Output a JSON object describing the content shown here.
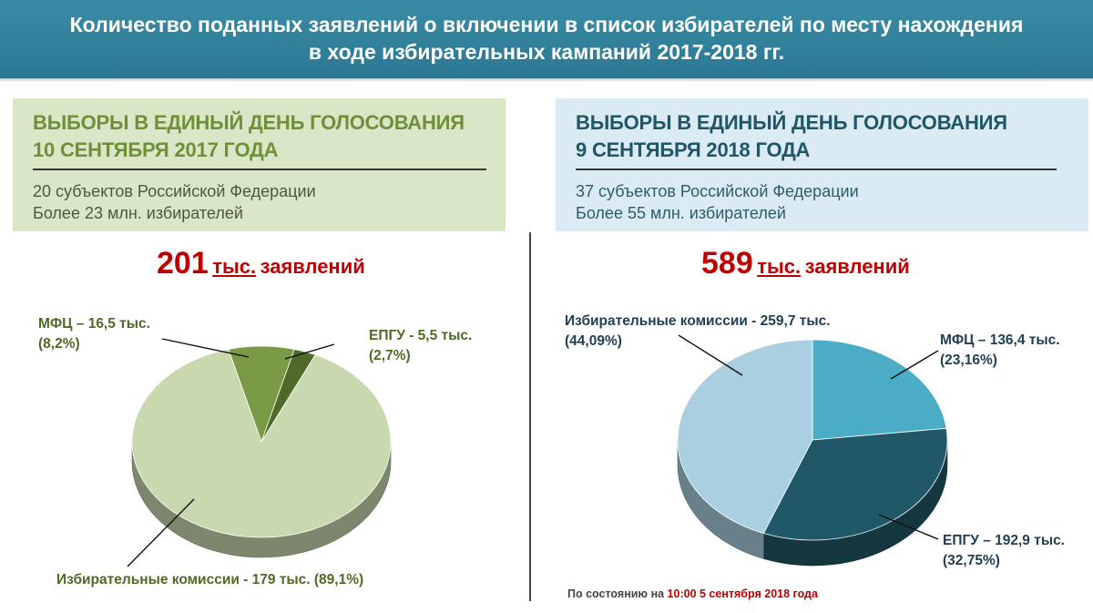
{
  "header": {
    "line1": "Количество поданных заявлений о включении в список избирателей по месту нахождения",
    "line2": "в ходе избирательных кампаний 2017-2018 гг."
  },
  "left_panel": {
    "title_line1": "ВЫБОРЫ В ЕДИНЫЙ ДЕНЬ ГОЛОСОВАНИЯ",
    "title_line2": "10 СЕНТЯБРЯ 2017 ГОДА",
    "desc_line1": "20 субъектов Российской Федерации",
    "desc_line2": "Более 23 млн. избирателей",
    "total_number": "201",
    "total_unit": "тыс.",
    "total_word": "заявлений"
  },
  "right_panel": {
    "title_line1": "ВЫБОРЫ В ЕДИНЫЙ ДЕНЬ ГОЛОСОВАНИЯ",
    "title_line2": "9 СЕНТЯБРЯ 2018 ГОДА",
    "desc_line1": "37 субъектов Российской Федерации",
    "desc_line2": "Более 55 млн. избирателей",
    "total_number": "589",
    "total_unit": "тыс.",
    "total_word": "заявлений"
  },
  "footnote": {
    "prefix": "По состоянию на ",
    "time": "10:00  5 сентября  2018 года"
  },
  "chart_data": [
    {
      "type": "pie",
      "title": "ВЫБОРЫ В ЕДИНЫЙ ДЕНЬ ГОЛОСОВАНИЯ 10 СЕНТЯБРЯ 2017 ГОДА",
      "unit": "тыс.",
      "slices": [
        {
          "name": "МФЦ",
          "value": 16.5,
          "percent": 8.2,
          "color": "#7a9a45",
          "label_line1": "МФЦ – 16,5 тыс.",
          "label_line2": "(8,2%)"
        },
        {
          "name": "ЕПГУ",
          "value": 5.5,
          "percent": 2.7,
          "color": "#4f6b27",
          "label_line1": "ЕПГУ - 5,5 тыс.",
          "label_line2": "(2,7%)"
        },
        {
          "name": "Избирательные комиссии",
          "value": 179,
          "percent": 89.1,
          "color": "#c9d9af",
          "label_line1": "Избирательные комиссии - 179 тыс. (89,1%)",
          "label_line2": ""
        }
      ]
    },
    {
      "type": "pie",
      "title": "ВЫБОРЫ В ЕДИНЫЙ ДЕНЬ ГОЛОСОВАНИЯ 9 СЕНТЯБРЯ 2018 ГОДА",
      "unit": "тыс.",
      "slices": [
        {
          "name": "МФЦ",
          "value": 136.4,
          "percent": 23.16,
          "color": "#4bacc6",
          "label_line1": "МФЦ – 136,4 тыс.",
          "label_line2": "(23,16%)"
        },
        {
          "name": "ЕПГУ",
          "value": 192.9,
          "percent": 32.75,
          "color": "#215868",
          "label_line1": "ЕПГУ – 192,9 тыс.",
          "label_line2": "(32,75%)"
        },
        {
          "name": "Избирательные комиссии",
          "value": 259.7,
          "percent": 44.09,
          "color": "#a9cfe0",
          "label_line1": "Избирательные комиссии  - 259,7 тыс.",
          "label_line2": "(44,09%)"
        }
      ]
    }
  ]
}
